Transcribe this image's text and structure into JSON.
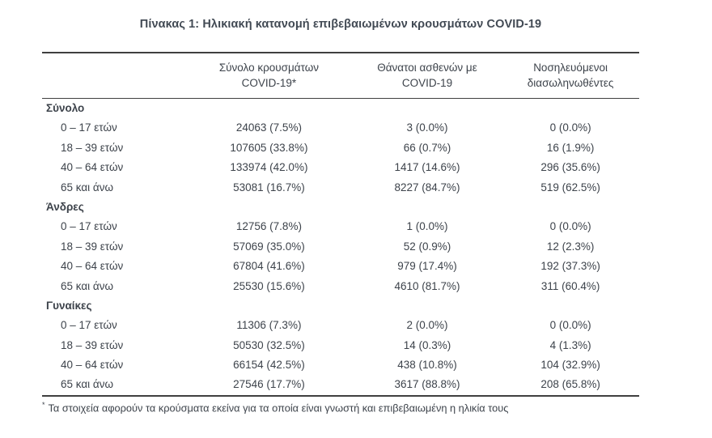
{
  "page": {
    "title": "Πίνακας 1: Ηλικιακή κατανομή επιβεβαιωμένων κρουσμάτων COVID-19",
    "footnote_marker": "*",
    "footnote": "Τα στοιχεία αφορούν τα κρούσματα εκείνα για τα οποία είναι γνωστή και επιβεβαιωμένη η ηλικία τους"
  },
  "colors": {
    "text": "#3d434b",
    "rule": "#3f3f3f",
    "background": "#ffffff"
  },
  "table": {
    "columns": [
      {
        "label": ""
      },
      {
        "label": "Σύνολο κρουσμάτων\nCOVID-19*"
      },
      {
        "label": "Θάνατοι ασθενών με\nCOVID-19"
      },
      {
        "label": "Νοσηλευόμενοι\nδιασωληνωθέντες"
      }
    ],
    "sections": [
      {
        "header": "Σύνολο",
        "rows": [
          {
            "label": "0 – 17 ετών",
            "cases": "24063 (7.5%)",
            "deaths": "3 (0.0%)",
            "intubated": "0 (0.0%)"
          },
          {
            "label": "18 – 39 ετών",
            "cases": "107605 (33.8%)",
            "deaths": "66 (0.7%)",
            "intubated": "16 (1.9%)"
          },
          {
            "label": "40 – 64 ετών",
            "cases": "133974 (42.0%)",
            "deaths": "1417 (14.6%)",
            "intubated": "296 (35.6%)"
          },
          {
            "label": "65 και άνω",
            "cases": "53081 (16.7%)",
            "deaths": "8227 (84.7%)",
            "intubated": "519 (62.5%)"
          }
        ]
      },
      {
        "header": "Άνδρες",
        "rows": [
          {
            "label": "0 – 17 ετών",
            "cases": "12756 (7.8%)",
            "deaths": "1 (0.0%)",
            "intubated": "0 (0.0%)"
          },
          {
            "label": "18 – 39 ετών",
            "cases": "57069 (35.0%)",
            "deaths": "52 (0.9%)",
            "intubated": "12 (2.3%)"
          },
          {
            "label": "40 – 64 ετών",
            "cases": "67804 (41.6%)",
            "deaths": "979 (17.4%)",
            "intubated": "192 (37.3%)"
          },
          {
            "label": "65 και άνω",
            "cases": "25530 (15.6%)",
            "deaths": "4610 (81.7%)",
            "intubated": "311 (60.4%)"
          }
        ]
      },
      {
        "header": "Γυναίκες",
        "rows": [
          {
            "label": "0 – 17 ετών",
            "cases": "11306 (7.3%)",
            "deaths": "2 (0.0%)",
            "intubated": "0 (0.0%)"
          },
          {
            "label": "18 – 39 ετών",
            "cases": "50530 (32.5%)",
            "deaths": "14 (0.3%)",
            "intubated": "4 (1.3%)"
          },
          {
            "label": "40 – 64 ετών",
            "cases": "66154 (42.5%)",
            "deaths": "438 (10.8%)",
            "intubated": "104 (32.9%)"
          },
          {
            "label": "65 και άνω",
            "cases": "27546 (17.7%)",
            "deaths": "3617 (88.8%)",
            "intubated": "208 (65.8%)"
          }
        ]
      }
    ]
  }
}
